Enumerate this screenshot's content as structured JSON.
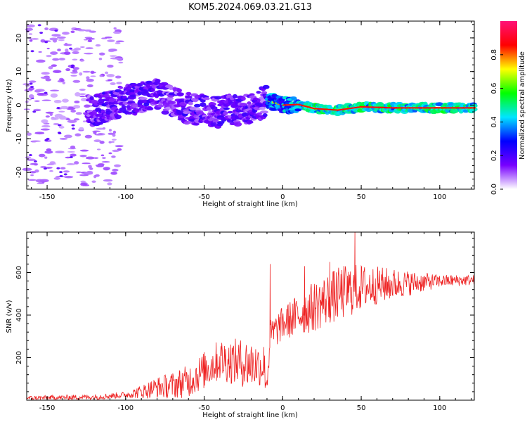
{
  "title": "KOM5.2024.069.03.21.G13",
  "chart_data": [
    {
      "type": "heatmap",
      "title": "",
      "xlabel": "Height of straight line (km)",
      "ylabel": "Frequency (Hz)",
      "xlim": [
        -163,
        122
      ],
      "ylim": [
        -25,
        25
      ],
      "xticks": [
        -150,
        -100,
        -50,
        0,
        50,
        100
      ],
      "yticks": [
        -20,
        -10,
        0,
        10,
        20
      ],
      "colorbar": {
        "label": "Normalized spectral amplitude",
        "range": [
          0,
          1
        ],
        "ticks": [
          "0.0",
          "0.2",
          "0.4",
          "0.6",
          "0.8"
        ],
        "colormap": [
          "#ffffff",
          "#7700ff",
          "#0000ff",
          "#00e5ff",
          "#00ff00",
          "#ffff00",
          "#ff0000",
          "#ff1177"
        ]
      },
      "ridge": {
        "description_points": [
          [
            -163,
            0
          ],
          [
            -120,
            -1.5
          ],
          [
            -100,
            1.5
          ],
          [
            -80,
            3
          ],
          [
            -60,
            -1
          ],
          [
            -40,
            -2
          ],
          [
            -20,
            -1
          ],
          [
            -10,
            1.5
          ],
          [
            0,
            0
          ],
          [
            10,
            0.2
          ],
          [
            20,
            -1
          ],
          [
            35,
            -1.5
          ],
          [
            50,
            -0.5
          ],
          [
            70,
            -0.8
          ],
          [
            90,
            -0.8
          ],
          [
            122,
            -0.8
          ]
        ]
      }
    },
    {
      "type": "line",
      "title": "",
      "xlabel": "Height of straight line (km)",
      "ylabel": "SNR (v/v)",
      "xlim": [
        -163,
        122
      ],
      "ylim": [
        0,
        790
      ],
      "xticks": [
        -150,
        -100,
        -50,
        0,
        50,
        100
      ],
      "yticks": [
        200,
        400,
        600
      ],
      "color": "#ee2222",
      "trend": [
        [
          -163,
          10
        ],
        [
          -120,
          15
        ],
        [
          -100,
          25
        ],
        [
          -90,
          40
        ],
        [
          -80,
          60
        ],
        [
          -70,
          70
        ],
        [
          -60,
          90
        ],
        [
          -50,
          140
        ],
        [
          -40,
          190
        ],
        [
          -30,
          180
        ],
        [
          -20,
          170
        ],
        [
          -12,
          160
        ],
        [
          -10,
          80
        ],
        [
          -8,
          300
        ],
        [
          0,
          360
        ],
        [
          10,
          400
        ],
        [
          20,
          440
        ],
        [
          30,
          480
        ],
        [
          40,
          510
        ],
        [
          50,
          530
        ],
        [
          60,
          540
        ],
        [
          70,
          545
        ],
        [
          80,
          550
        ],
        [
          90,
          555
        ],
        [
          100,
          560
        ],
        [
          122,
          565
        ]
      ],
      "noise_amplitude": [
        [
          -163,
          10
        ],
        [
          -100,
          15
        ],
        [
          -80,
          50
        ],
        [
          -50,
          90
        ],
        [
          -20,
          120
        ],
        [
          -10,
          80
        ],
        [
          0,
          80
        ],
        [
          20,
          120
        ],
        [
          40,
          130
        ],
        [
          60,
          90
        ],
        [
          80,
          60
        ],
        [
          100,
          30
        ],
        [
          122,
          25
        ]
      ],
      "spikes": [
        [
          -12,
          250
        ],
        [
          -8,
          640
        ],
        [
          14,
          630
        ],
        [
          30,
          650
        ],
        [
          46,
          790
        ]
      ]
    }
  ]
}
